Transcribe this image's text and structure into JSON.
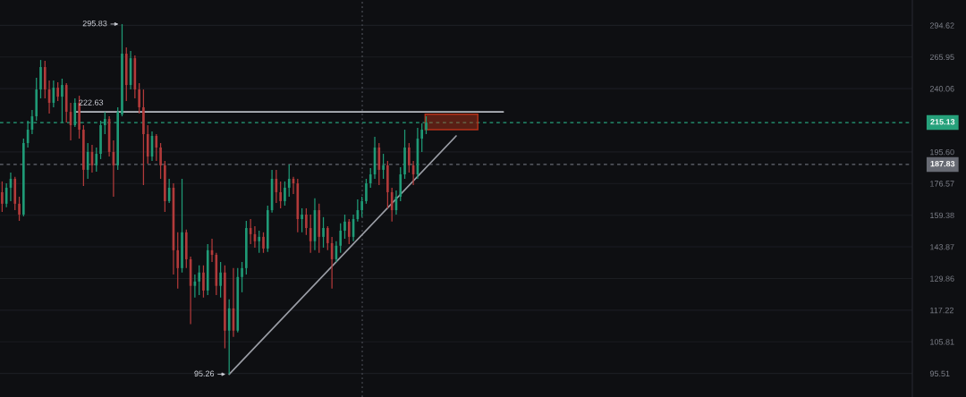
{
  "chart_data": {
    "type": "candlestick",
    "categories": [
      null,
      null,
      null,
      null,
      null,
      null,
      null,
      null,
      null,
      null,
      null,
      null,
      null,
      null,
      null,
      null,
      null,
      null,
      null,
      null,
      null,
      null,
      null,
      null,
      null,
      null,
      null,
      null,
      null,
      null,
      null,
      null,
      null,
      null,
      null,
      null,
      null,
      null,
      null,
      null,
      null,
      null,
      null,
      null,
      null,
      null,
      null,
      null,
      null,
      null,
      null,
      null,
      null,
      null,
      null,
      null,
      null,
      null,
      null,
      null,
      null,
      null,
      null,
      null,
      null,
      null,
      null,
      null,
      null,
      null,
      null,
      null,
      null,
      null,
      null,
      null,
      null,
      null,
      null,
      null,
      null,
      null,
      null,
      null,
      null,
      null,
      null,
      null,
      null,
      null,
      null,
      null,
      null,
      null,
      null,
      null,
      null,
      null,
      null,
      null,
      null,
      null,
      null,
      null,
      null,
      null,
      null,
      null,
      null,
      null,
      null,
      null,
      null,
      null,
      null,
      null,
      null,
      null,
      null,
      null,
      null,
      null,
      null,
      null,
      null,
      null,
      null,
      null,
      null,
      null,
      null,
      null,
      null,
      null,
      null,
      null,
      null,
      null,
      null,
      null,
      null,
      null,
      null,
      null,
      null,
      null,
      null,
      null,
      null,
      null,
      null,
      null,
      null,
      null,
      null,
      null,
      null,
      null,
      null,
      null,
      null,
      null,
      null,
      null,
      null,
      null,
      null,
      null,
      null,
      null,
      null,
      null,
      null,
      null,
      null,
      null,
      null,
      null,
      null,
      null,
      null,
      null,
      null,
      null,
      null,
      null,
      null,
      null,
      null,
      null,
      null,
      null,
      null,
      null,
      null,
      null,
      null,
      null,
      null,
      null,
      null,
      null,
      null,
      null,
      null,
      null,
      null,
      null,
      null,
      null,
      null,
      null,
      null
    ],
    "ohlc": [
      [
        171.7,
        177.8,
        161.1,
        165.4
      ],
      [
        165.4,
        176.7,
        163.5,
        174.2
      ],
      [
        174.2,
        183.0,
        166.8,
        179.3
      ],
      [
        179.3,
        180.4,
        162.0,
        165.4
      ],
      [
        165.4,
        169.2,
        156.5,
        159.7
      ],
      [
        159.7,
        204.2,
        158.8,
        201.3
      ],
      [
        201.3,
        216.4,
        198.4,
        210.2
      ],
      [
        210.2,
        224.0,
        207.2,
        219.5
      ],
      [
        219.5,
        248.6,
        216.4,
        239.4
      ],
      [
        239.4,
        263.4,
        232.6,
        257.4
      ],
      [
        257.4,
        262.6,
        232.6,
        239.4
      ],
      [
        239.4,
        246.5,
        221.4,
        229.3
      ],
      [
        229.3,
        246.5,
        226.0,
        240.8
      ],
      [
        240.8,
        245.0,
        230.6,
        233.9
      ],
      [
        233.9,
        247.9,
        215.1,
        242.9
      ],
      [
        242.9,
        244.3,
        215.1,
        222.7
      ],
      [
        222.7,
        229.3,
        203.0,
        213.3
      ],
      [
        213.3,
        232.6,
        212.0,
        229.3
      ],
      [
        229.3,
        234.6,
        204.2,
        210.2
      ],
      [
        210.2,
        213.3,
        175.2,
        184.6
      ],
      [
        184.6,
        201.3,
        179.3,
        195.6
      ],
      [
        195.6,
        200.1,
        183.0,
        187.3
      ],
      [
        187.3,
        198.4,
        183.5,
        194.4
      ],
      [
        194.4,
        216.4,
        191.1,
        213.3
      ],
      [
        213.3,
        222.6,
        207.2,
        217.6
      ],
      [
        217.6,
        219.5,
        192.7,
        195.6
      ],
      [
        195.6,
        203.0,
        169.2,
        187.3
      ],
      [
        187.3,
        226.0,
        184.6,
        222.7
      ],
      [
        220.8,
        295.83,
        219.5,
        268.8
      ],
      [
        268.8,
        274.3,
        230.6,
        242.9
      ],
      [
        242.9,
        271.1,
        239.4,
        264.9
      ],
      [
        264.9,
        267.3,
        232.6,
        239.4
      ],
      [
        239.4,
        244.3,
        221.4,
        226.0
      ],
      [
        226.0,
        239.4,
        175.7,
        207.2
      ],
      [
        207.2,
        213.3,
        188.3,
        192.7
      ],
      [
        192.7,
        209.0,
        190.0,
        206.0
      ],
      [
        206.0,
        207.2,
        190.0,
        198.4
      ],
      [
        198.4,
        201.3,
        179.3,
        187.3
      ],
      [
        187.3,
        190.0,
        161.1,
        166.8
      ],
      [
        166.8,
        179.3,
        165.8,
        174.2
      ],
      [
        174.2,
        176.7,
        131.6,
        142.3
      ],
      [
        142.3,
        150.8,
        125.7,
        134.3
      ],
      [
        134.3,
        179.3,
        132.4,
        150.8
      ],
      [
        150.8,
        152.1,
        134.3,
        138.2
      ],
      [
        138.2,
        139.4,
        112.0,
        126.8
      ],
      [
        126.8,
        131.6,
        122.1,
        128.6
      ],
      [
        128.6,
        135.5,
        123.1,
        132.4
      ],
      [
        132.4,
        135.5,
        122.1,
        124.9
      ],
      [
        124.9,
        145.2,
        123.1,
        142.3
      ],
      [
        142.3,
        147.7,
        137.0,
        140.2
      ],
      [
        140.2,
        141.1,
        123.1,
        126.8
      ],
      [
        126.8,
        137.0,
        122.1,
        132.4
      ],
      [
        132.4,
        135.5,
        103.6,
        109.7
      ],
      [
        109.7,
        121.4,
        95.26,
        117.9
      ],
      [
        117.9,
        134.3,
        107.5,
        109.7
      ],
      [
        109.7,
        134.3,
        109.1,
        130.5
      ],
      [
        130.5,
        137.0,
        124.2,
        134.3
      ],
      [
        134.3,
        156.5,
        131.6,
        152.9
      ],
      [
        152.9,
        157.4,
        145.2,
        149.9
      ],
      [
        149.9,
        153.8,
        143.5,
        146.5
      ],
      [
        146.5,
        151.6,
        141.1,
        148.6
      ],
      [
        148.6,
        150.8,
        141.1,
        143.1
      ],
      [
        143.1,
        164.4,
        141.5,
        162.0
      ],
      [
        162.0,
        184.6,
        160.7,
        179.3
      ],
      [
        179.3,
        184.6,
        165.8,
        171.7
      ],
      [
        171.7,
        177.8,
        163.0,
        166.8
      ],
      [
        166.8,
        177.8,
        164.4,
        174.2
      ],
      [
        174.2,
        187.8,
        169.2,
        179.3
      ],
      [
        179.3,
        180.4,
        170.7,
        176.7
      ],
      [
        176.7,
        179.3,
        150.8,
        157.4
      ],
      [
        157.4,
        163.0,
        150.8,
        159.7
      ],
      [
        159.7,
        163.0,
        149.5,
        152.9
      ],
      [
        152.9,
        159.7,
        141.1,
        146.5
      ],
      [
        146.5,
        168.3,
        142.3,
        162.0
      ],
      [
        162.0,
        165.4,
        141.1,
        148.6
      ],
      [
        148.6,
        158.4,
        143.5,
        152.9
      ],
      [
        152.9,
        153.8,
        142.3,
        145.6
      ],
      [
        145.6,
        148.6,
        125.7,
        138.2
      ],
      [
        138.2,
        146.5,
        137.0,
        144.4
      ],
      [
        144.4,
        155.2,
        141.1,
        151.6
      ],
      [
        151.6,
        159.7,
        147.7,
        156.1
      ],
      [
        156.1,
        157.4,
        145.2,
        148.6
      ],
      [
        148.6,
        159.7,
        146.5,
        157.4
      ],
      [
        157.4,
        167.8,
        156.1,
        162.0
      ],
      [
        162.0,
        169.2,
        158.4,
        166.8
      ],
      [
        166.8,
        179.3,
        165.4,
        176.7
      ],
      [
        176.7,
        185.6,
        174.2,
        181.9
      ],
      [
        181.9,
        205.4,
        179.3,
        198.4
      ],
      [
        198.4,
        201.3,
        175.7,
        184.6
      ],
      [
        184.6,
        194.4,
        179.3,
        187.3
      ],
      [
        187.3,
        190.0,
        163.0,
        171.7
      ],
      [
        171.7,
        174.2,
        156.1,
        162.0
      ],
      [
        162.0,
        172.7,
        159.7,
        169.2
      ],
      [
        169.2,
        186.2,
        166.8,
        181.9
      ],
      [
        181.9,
        210.2,
        179.3,
        198.4
      ],
      [
        198.4,
        201.3,
        183.0,
        187.3
      ],
      [
        187.3,
        190.0,
        175.7,
        181.9
      ],
      [
        181.9,
        211.4,
        179.3,
        204.2
      ],
      [
        204.2,
        214.5,
        195.6,
        210.2
      ],
      [
        210.2,
        219.5,
        207.2,
        215.13
      ],
      null,
      null,
      null,
      null,
      null,
      null,
      null,
      null,
      null,
      null,
      null,
      null,
      null,
      null,
      null,
      null,
      null,
      null,
      null,
      null,
      null,
      null,
      null,
      null,
      null,
      null,
      null,
      null,
      null,
      null,
      null,
      null,
      null,
      null,
      null,
      null,
      null,
      null,
      null,
      null,
      null,
      null,
      null,
      null,
      null,
      null,
      null,
      null,
      null,
      null,
      null,
      null,
      null,
      null,
      null,
      null,
      null,
      null,
      null,
      null,
      null,
      null,
      null,
      null,
      null,
      null,
      null,
      null,
      null,
      null,
      null,
      null,
      null,
      null,
      null,
      null,
      null,
      null,
      null,
      null,
      null,
      null,
      null,
      null,
      null,
      null,
      null,
      null,
      null,
      null,
      null,
      null,
      null,
      null,
      null,
      null,
      null,
      null,
      null,
      null,
      null,
      null,
      null,
      null,
      null,
      null,
      null,
      null,
      null,
      null,
      null,
      null,
      null
    ],
    "colors": [
      "#b23a3a",
      "#1f9a76",
      "#1f9a76",
      "#b23a3a",
      "#b23a3a",
      "#1f9a76",
      "#1f9a76",
      "#1f9a76",
      "#1f9a76",
      "#1f9a76",
      "#b23a3a",
      "#b23a3a",
      "#1f9a76",
      "#b23a3a",
      "#1f9a76",
      "#b23a3a",
      "#b23a3a",
      "#1f9a76",
      "#b23a3a",
      "#b23a3a",
      "#1f9a76",
      "#b23a3a",
      "#1f9a76",
      "#1f9a76",
      "#1f9a76",
      "#b23a3a",
      "#b23a3a",
      "#1f9a76",
      "#1f9a76",
      "#b23a3a",
      "#1f9a76",
      "#b23a3a",
      "#b23a3a",
      "#b23a3a",
      "#b23a3a",
      "#1f9a76",
      "#b23a3a",
      "#b23a3a",
      "#b23a3a",
      "#1f9a76",
      "#b23a3a",
      "#b23a3a",
      "#1f9a76",
      "#b23a3a",
      "#b23a3a",
      "#1f9a76",
      "#1f9a76",
      "#b23a3a",
      "#1f9a76",
      "#b23a3a",
      "#b23a3a",
      "#1f9a76",
      "#b23a3a",
      "#1f9a76",
      "#b23a3a",
      "#1f9a76",
      "#1f9a76",
      "#1f9a76",
      "#b23a3a",
      "#b23a3a",
      "#1f9a76",
      "#b23a3a",
      "#1f9a76",
      "#1f9a76",
      "#b23a3a",
      "#b23a3a",
      "#1f9a76",
      "#1f9a76",
      "#b23a3a",
      "#b23a3a",
      "#1f9a76",
      "#b23a3a",
      "#b23a3a",
      "#1f9a76",
      "#b23a3a",
      "#1f9a76",
      "#b23a3a",
      "#b23a3a",
      "#1f9a76",
      "#1f9a76",
      "#1f9a76",
      "#b23a3a",
      "#1f9a76",
      "#1f9a76",
      "#1f9a76",
      "#1f9a76",
      "#1f9a76",
      "#1f9a76",
      "#b23a3a",
      "#1f9a76",
      "#b23a3a",
      "#b23a3a",
      "#1f9a76",
      "#1f9a76",
      "#1f9a76",
      "#b23a3a",
      "#b23a3a",
      "#1f9a76",
      "#1f9a76",
      "#1f9a76",
      null,
      null,
      null,
      null,
      null,
      null,
      null,
      null,
      null,
      null,
      null,
      null,
      null,
      null,
      null,
      null,
      null,
      null,
      null,
      null,
      null,
      null,
      null,
      null,
      null,
      null,
      null,
      null,
      null,
      null,
      null,
      null,
      null,
      null,
      null,
      null,
      null,
      null,
      null,
      null,
      null,
      null,
      null,
      null,
      null,
      null,
      null,
      null,
      null,
      null,
      null,
      null,
      null,
      null,
      null,
      null,
      null,
      null,
      null,
      null,
      null,
      null,
      null,
      null,
      null,
      null,
      null,
      null,
      null,
      null,
      null,
      null,
      null,
      null,
      null,
      null,
      null,
      null,
      null,
      null,
      null,
      null,
      null,
      null,
      null,
      null,
      null,
      null,
      null,
      null,
      null,
      null,
      null,
      null,
      null,
      null,
      null,
      null,
      null,
      null,
      null,
      null,
      null,
      null,
      null,
      null,
      null,
      null,
      null,
      null,
      null,
      null,
      null
    ],
    "series": [
      {
        "type": "line",
        "name": "222.63",
        "color": "#b8bbc2",
        "values": [
          null,
          null,
          null,
          null,
          null,
          null,
          null,
          null,
          null,
          null,
          null,
          null,
          null,
          null,
          null,
          null,
          null,
          222.63,
          null,
          null,
          null,
          null,
          null,
          null,
          null,
          null,
          null,
          null,
          null,
          null,
          null,
          null,
          null,
          null,
          null,
          null,
          null,
          null,
          null,
          null,
          null,
          null,
          null,
          null,
          null,
          null,
          null,
          null,
          null,
          null,
          null,
          null,
          null,
          null,
          null,
          null,
          null,
          null,
          null,
          null,
          null,
          null,
          null,
          null,
          null,
          null,
          null,
          null,
          null,
          null,
          null,
          null,
          null,
          null,
          null,
          null,
          null,
          null,
          null,
          null,
          null,
          null,
          null,
          null,
          null,
          null,
          null,
          null,
          null,
          null,
          null,
          null,
          null,
          null,
          null,
          null,
          null,
          null,
          null,
          null,
          null,
          null,
          null,
          null,
          null,
          null,
          null,
          null,
          null,
          null,
          null,
          null,
          null,
          null,
          null,
          null,
          null,
          222.63,
          null,
          null,
          null,
          null,
          null,
          null,
          null,
          null,
          null,
          null,
          null,
          null,
          null,
          null,
          null,
          null,
          null,
          null,
          null,
          null,
          null,
          null,
          null,
          null,
          null,
          null,
          null,
          null,
          null,
          null,
          null,
          null,
          null,
          null,
          null,
          null,
          null,
          null,
          null,
          null,
          null,
          null,
          null,
          null,
          null,
          null,
          null,
          null,
          null,
          null,
          null,
          null,
          null,
          null,
          null,
          null,
          null,
          null,
          null,
          null,
          null,
          null,
          null,
          null,
          null,
          null,
          null,
          null,
          null,
          null,
          null,
          null,
          null,
          null,
          null,
          null,
          null,
          null,
          null,
          null,
          null,
          null,
          null,
          null,
          null,
          null,
          null,
          null,
          null,
          null,
          null,
          null,
          null,
          null,
          null
        ]
      },
      {
        "type": "line",
        "color": "#9a9da5",
        "values": [
          null,
          null,
          null,
          null,
          null,
          null,
          null,
          null,
          null,
          null,
          null,
          null,
          null,
          null,
          null,
          null,
          null,
          null,
          null,
          null,
          null,
          null,
          null,
          null,
          null,
          null,
          null,
          null,
          null,
          null,
          null,
          null,
          null,
          null,
          null,
          null,
          null,
          null,
          null,
          null,
          null,
          null,
          null,
          null,
          null,
          null,
          null,
          null,
          null,
          null,
          null,
          null,
          null,
          95.26,
          null,
          null,
          null,
          null,
          null,
          null,
          null,
          null,
          null,
          null,
          null,
          null,
          null,
          null,
          null,
          null,
          null,
          null,
          null,
          null,
          null,
          null,
          null,
          null,
          null,
          null,
          null,
          null,
          null,
          null,
          null,
          null,
          null,
          null,
          null,
          null,
          null,
          null,
          null,
          null,
          null,
          null,
          null,
          null,
          null,
          null,
          null,
          null,
          null,
          null,
          null,
          null,
          206,
          null,
          null,
          null,
          null,
          null,
          null,
          null,
          null,
          null,
          null,
          null,
          null,
          null,
          null,
          null,
          null,
          null,
          null,
          null,
          null,
          null,
          null,
          null,
          null,
          null,
          null,
          null,
          null,
          null,
          null,
          null,
          null,
          null,
          null,
          null,
          null,
          null,
          null,
          null,
          null,
          null,
          null,
          null,
          null,
          null,
          null,
          null,
          null,
          null,
          null,
          null,
          null,
          null,
          null,
          null,
          null,
          null,
          null,
          null,
          null,
          null,
          null,
          null,
          null,
          null,
          null,
          null,
          null,
          null,
          null,
          null,
          null,
          null,
          null,
          null,
          null,
          null,
          null,
          null,
          null,
          null,
          null,
          null,
          null,
          null,
          null,
          null,
          null,
          null,
          null,
          null,
          null,
          null,
          null,
          null,
          null,
          null,
          null,
          null,
          null,
          null,
          null,
          null,
          null,
          null,
          null
        ]
      }
    ],
    "log": true,
    "ylim": [
      88.5,
      319.8
    ],
    "yticks": [
      95.51,
      105.81,
      117.22,
      129.86,
      143.87,
      159.38,
      176.57,
      {
        "value": 195.6,
        "label": "195.60"
      },
      240.06,
      265.95,
      294.62
    ],
    "tick_labels": "y",
    "grid": "y",
    "ref_lines": [
      {
        "axis": "y",
        "value": 215.13,
        "label": "215.13",
        "color": "#26a17b",
        "line_style": "dashed"
      },
      {
        "axis": "y",
        "value": 187.83,
        "label": "187.83",
        "color": "#676a73",
        "line_style": "dashed"
      }
    ],
    "bands": [
      {
        "axis": "y",
        "from": 210.2,
        "to": 221.0,
        "color": "#b5321a"
      }
    ],
    "annotations": [
      "295.83",
      "95.26"
    ]
  }
}
